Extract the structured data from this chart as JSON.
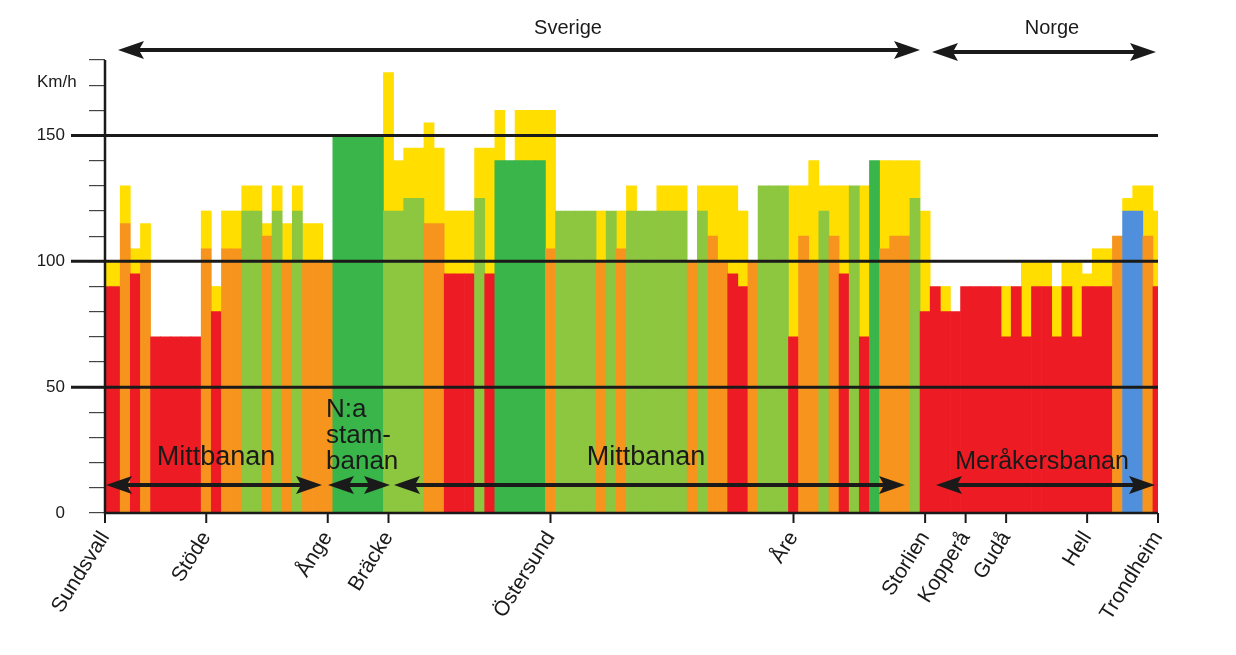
{
  "chart_data": {
    "type": "bar",
    "ylabel": "Km/h",
    "categories": [
      "Sundsvall",
      null,
      null,
      null,
      null,
      null,
      null,
      null,
      null,
      null,
      "Stöde",
      null,
      null,
      null,
      null,
      null,
      null,
      null,
      null,
      null,
      null,
      null,
      "Ånge",
      null,
      null,
      null,
      null,
      null,
      "Bräcke",
      null,
      null,
      null,
      null,
      null,
      null,
      null,
      null,
      null,
      null,
      null,
      null,
      null,
      null,
      null,
      "Östersund",
      null,
      null,
      null,
      null,
      null,
      null,
      null,
      null,
      null,
      null,
      null,
      null,
      null,
      null,
      null,
      null,
      null,
      null,
      null,
      null,
      null,
      null,
      null,
      "Åre",
      null,
      null,
      null,
      null,
      null,
      null,
      null,
      null,
      null,
      null,
      null,
      null,
      "Storlien",
      null,
      null,
      null,
      "Kopperå",
      null,
      null,
      null,
      "Gudå",
      null,
      null,
      null,
      null,
      null,
      null,
      null,
      "Hell",
      null,
      null,
      null,
      null,
      null,
      null,
      "Trondheim"
    ],
    "series": [
      {
        "colors": [
          "#ed1c24",
          "#ed1c24",
          "#f7941d",
          "#ed1c24",
          "#f7941d",
          "#ed1c24",
          "#ed1c24",
          "#ed1c24",
          "#ed1c24",
          "#ed1c24",
          "#f7941d",
          "#ed1c24",
          "#f7941d",
          "#f7941d",
          "#8dc63f",
          "#8dc63f",
          "#f7941d",
          "#8dc63f",
          "#f7941d",
          "#8dc63f",
          "#f7941d",
          "#f7941d",
          "#f7941d",
          "#39b54a",
          "#39b54a",
          "#39b54a",
          "#39b54a",
          "#39b54a",
          "#8dc63f",
          "#8dc63f",
          "#8dc63f",
          "#8dc63f",
          "#f7941d",
          "#f7941d",
          "#ed1c24",
          "#ed1c24",
          "#ed1c24",
          "#8dc63f",
          "#ed1c24",
          "#39b54a",
          "#39b54a",
          "#39b54a",
          "#39b54a",
          "#39b54a",
          "#f7941d",
          "#8dc63f",
          "#8dc63f",
          "#8dc63f",
          "#8dc63f",
          "#f7941d",
          "#8dc63f",
          "#f7941d",
          "#8dc63f",
          "#8dc63f",
          "#8dc63f",
          "#8dc63f",
          "#8dc63f",
          "#8dc63f",
          "#f7941d",
          "#8dc63f",
          "#f7941d",
          "#f7941d",
          "#ed1c24",
          "#ed1c24",
          "#f7941d",
          "#8dc63f",
          "#8dc63f",
          "#8dc63f",
          "#ed1c24",
          "#f7941d",
          "#f7941d",
          "#8dc63f",
          "#f7941d",
          "#ed1c24",
          "#8dc63f",
          "#ed1c24",
          "#39b54a",
          "#f7941d",
          "#f7941d",
          "#f7941d",
          "#8dc63f",
          "#ed1c24",
          "#ed1c24",
          "#ed1c24",
          "#ed1c24",
          "#ed1c24",
          "#ed1c24",
          "#ed1c24",
          "#ed1c24",
          "#ed1c24",
          "#ed1c24",
          "#ed1c24",
          "#ed1c24",
          "#ed1c24",
          "#ed1c24",
          "#ed1c24",
          "#ed1c24",
          "#ed1c24",
          "#ed1c24",
          "#ed1c24",
          "#f7941d",
          "#4f8fdc",
          "#4f8fdc",
          "#f7941d",
          "#ed1c24"
        ],
        "values": [
          90,
          90,
          115,
          95,
          100,
          70,
          70,
          70,
          70,
          70,
          105,
          80,
          105,
          105,
          120,
          120,
          110,
          120,
          100,
          120,
          100,
          100,
          100,
          150,
          150,
          150,
          150,
          150,
          120,
          120,
          125,
          125,
          115,
          115,
          95,
          95,
          95,
          125,
          95,
          140,
          140,
          140,
          140,
          140,
          105,
          120,
          120,
          120,
          120,
          100,
          120,
          105,
          120,
          120,
          120,
          120,
          120,
          120,
          100,
          120,
          110,
          100,
          95,
          90,
          100,
          130,
          130,
          130,
          70,
          110,
          100,
          120,
          110,
          95,
          130,
          70,
          140,
          105,
          110,
          110,
          125,
          80,
          90,
          80,
          80,
          90,
          90,
          90,
          90,
          70,
          90,
          70,
          90,
          90,
          70,
          90,
          70,
          90,
          90,
          90,
          110,
          120,
          120,
          110,
          90
        ]
      },
      {
        "color": "#ffde00",
        "values": [
          10,
          10,
          15,
          10,
          15,
          null,
          null,
          null,
          null,
          null,
          15,
          10,
          15,
          15,
          10,
          10,
          5,
          10,
          15,
          10,
          15,
          15,
          null,
          null,
          null,
          null,
          null,
          null,
          55,
          20,
          20,
          20,
          40,
          30,
          25,
          25,
          25,
          20,
          50,
          20,
          null,
          20,
          20,
          20,
          55,
          null,
          null,
          null,
          null,
          20,
          null,
          15,
          10,
          null,
          null,
          10,
          10,
          10,
          null,
          10,
          20,
          30,
          35,
          30,
          null,
          null,
          null,
          null,
          60,
          20,
          40,
          10,
          20,
          35,
          null,
          60,
          null,
          35,
          30,
          30,
          15,
          40,
          null,
          10,
          null,
          null,
          null,
          null,
          null,
          20,
          null,
          30,
          10,
          10,
          20,
          10,
          30,
          5,
          15,
          15,
          null,
          5,
          10,
          20,
          30
        ]
      }
    ],
    "ylim": [
      0,
      180
    ],
    "yticks": [
      0,
      {
        "value": 10,
        "label": null
      },
      {
        "value": 20,
        "label": null
      },
      {
        "value": 30,
        "label": null
      },
      {
        "value": 40,
        "label": null
      },
      50,
      {
        "value": 60,
        "label": null
      },
      {
        "value": 70,
        "label": null
      },
      {
        "value": 80,
        "label": null
      },
      {
        "value": 90,
        "label": null
      },
      100,
      {
        "value": 110,
        "label": null
      },
      {
        "value": 120,
        "label": null
      },
      {
        "value": 130,
        "label": null
      },
      {
        "value": 140,
        "label": null
      },
      150,
      {
        "value": 160,
        "label": null
      },
      {
        "value": 170,
        "label": null
      },
      {
        "value": 180,
        "label": null
      }
    ],
    "ref_lines": [
      {
        "axis": "y",
        "value": 50,
        "color": "#1a1a1a"
      },
      {
        "axis": "y",
        "value": 100,
        "color": "#1a1a1a"
      },
      {
        "axis": "y",
        "value": 150,
        "color": "#1a1a1a"
      }
    ],
    "annotations": [
      "Sverige",
      "Norge",
      "Mittbanan",
      "N:a\nstam-\nbanan",
      "Mittbanan",
      "Meråkersbanan"
    ],
    "legend": false,
    "grid": false,
    "stacked": true
  }
}
